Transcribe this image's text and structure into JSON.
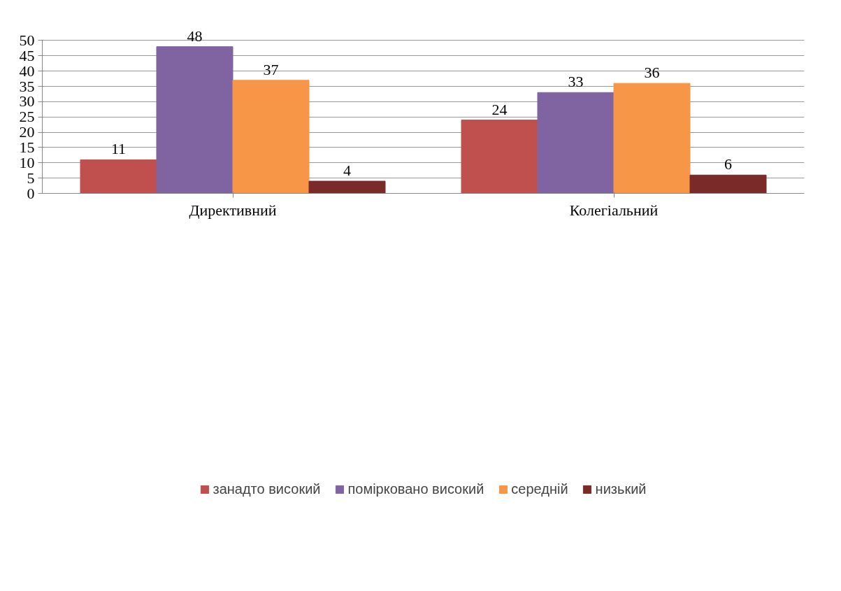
{
  "chart_data": {
    "type": "bar",
    "categories": [
      "Директивний",
      "Колегіальний"
    ],
    "series": [
      {
        "name": "занадто високий",
        "color": "#c0504d",
        "values": [
          11,
          24
        ]
      },
      {
        "name": "помірковано високий",
        "color": "#8064a2",
        "values": [
          48,
          33
        ]
      },
      {
        "name": "середній",
        "color": "#f79646",
        "values": [
          37,
          36
        ]
      },
      {
        "name": "низький",
        "color": "#7b2a2a",
        "values": [
          4,
          6
        ]
      }
    ],
    "ylim": [
      0,
      50
    ],
    "yticks": [
      0,
      5,
      10,
      15,
      20,
      25,
      30,
      35,
      40,
      45,
      50
    ],
    "grid": "y",
    "legend": "bottom",
    "data_labels": true
  }
}
